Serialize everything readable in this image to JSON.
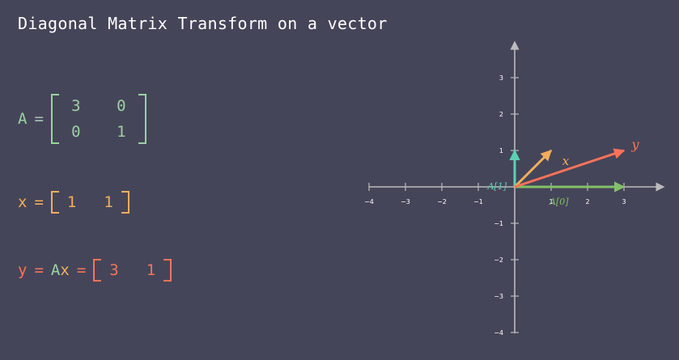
{
  "title": "Diagonal Matrix Transform on a vector",
  "equations": {
    "A": {
      "lhs": "A",
      "eq": "=",
      "rows": [
        [
          "3",
          "0"
        ],
        [
          "0",
          "1"
        ]
      ]
    },
    "x": {
      "lhs": "x",
      "eq": "=",
      "values": [
        "1",
        "1"
      ]
    },
    "y": {
      "lhs": "y",
      "eq1": "=",
      "a": "A",
      "x": "x",
      "eq2": "=",
      "values": [
        "3",
        "1"
      ]
    }
  },
  "plane": {
    "xticks": [
      "−4",
      "−3",
      "−2",
      "−1",
      "1",
      "2",
      "3"
    ],
    "yticks": [
      "3",
      "2",
      "1",
      "−1",
      "−2",
      "−3",
      "−4"
    ],
    "vectors": [
      {
        "label": "A[0]",
        "x": 3,
        "y": 0,
        "color": "#83c167"
      },
      {
        "label": "A[1]",
        "x": 0,
        "y": 1,
        "color": "#5cd0b3"
      },
      {
        "label": "x",
        "x": 1,
        "y": 1,
        "color": "#f2ae5b"
      },
      {
        "label": "y",
        "x": 3,
        "y": 1,
        "color": "#fc7259"
      }
    ]
  },
  "colors": {
    "background": "#454559",
    "axis": "#bbbbbb",
    "matrix": "#9bd1a3",
    "x": "#f2ae5b",
    "y": "#fc7259",
    "col0": "#83c167",
    "col1": "#5cd0b3"
  }
}
